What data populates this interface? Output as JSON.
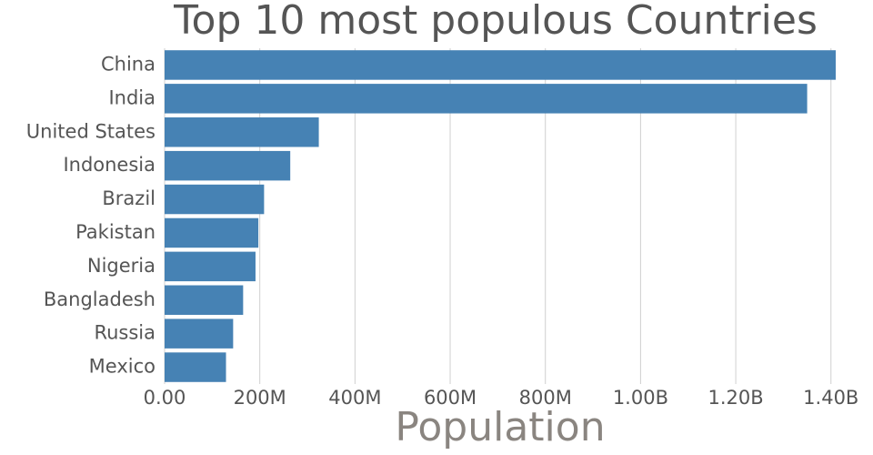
{
  "chart_data": {
    "type": "bar",
    "orientation": "horizontal",
    "title": "Top 10 most populous Countries",
    "x_label": "Population",
    "categories": [
      "China",
      "India",
      "United States",
      "Indonesia",
      "Brazil",
      "Pakistan",
      "Nigeria",
      "Bangladesh",
      "Russia",
      "Mexico"
    ],
    "values": [
      1410000000,
      1350000000,
      324000000,
      264000000,
      209000000,
      197000000,
      191000000,
      165000000,
      144000000,
      129000000
    ],
    "color": "#4682b4",
    "xlim": [
      0,
      1410000000
    ],
    "xticks": [
      {
        "value": 0,
        "label": "0.00"
      },
      {
        "value": 200000000,
        "label": "200M"
      },
      {
        "value": 400000000,
        "label": "400M"
      },
      {
        "value": 600000000,
        "label": "600M"
      },
      {
        "value": 800000000,
        "label": "800M"
      },
      {
        "value": 1000000000,
        "label": "1.00B"
      },
      {
        "value": 1200000000,
        "label": "1.20B"
      },
      {
        "value": 1400000000,
        "label": "1.40B"
      }
    ],
    "grid": true
  }
}
